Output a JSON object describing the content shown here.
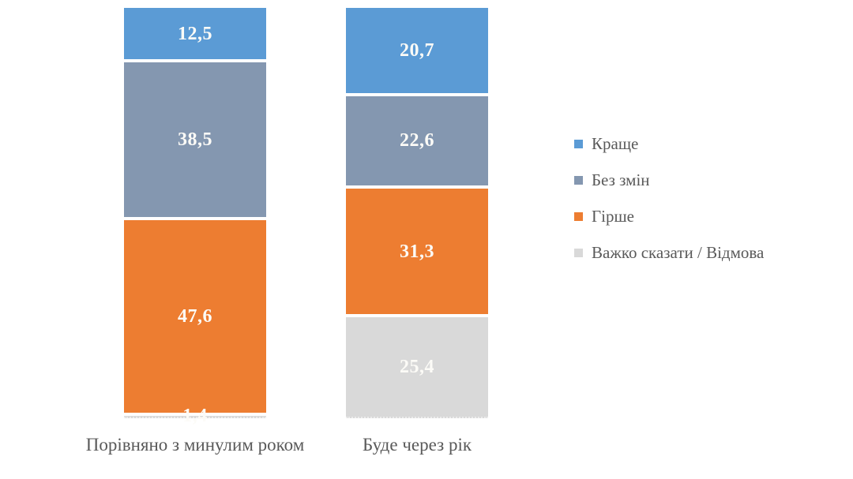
{
  "chart_data": {
    "type": "bar",
    "stacked": true,
    "orientation": "vertical",
    "title": "",
    "xlabel": "",
    "ylabel": "",
    "ylim": [
      0,
      100
    ],
    "grid": false,
    "legend_position": "right",
    "decimal_separator": ",",
    "categories": [
      "Порівняно з минулим роком",
      "Буде через рік"
    ],
    "series": [
      {
        "name": "Краще",
        "color": "#5B9BD5",
        "values": [
          12.5,
          20.7
        ]
      },
      {
        "name": "Без змін",
        "color": "#8497B0",
        "values": [
          38.5,
          22.6
        ]
      },
      {
        "name": "Гірше",
        "color": "#ED7D31",
        "values": [
          47.6,
          31.3
        ]
      },
      {
        "name": "Важко сказати / Відмова",
        "color": "#D9D9D9",
        "values": [
          1.4,
          25.4
        ]
      }
    ],
    "value_label_color": "#FFFFFF",
    "axis_text_color": "#595959"
  }
}
